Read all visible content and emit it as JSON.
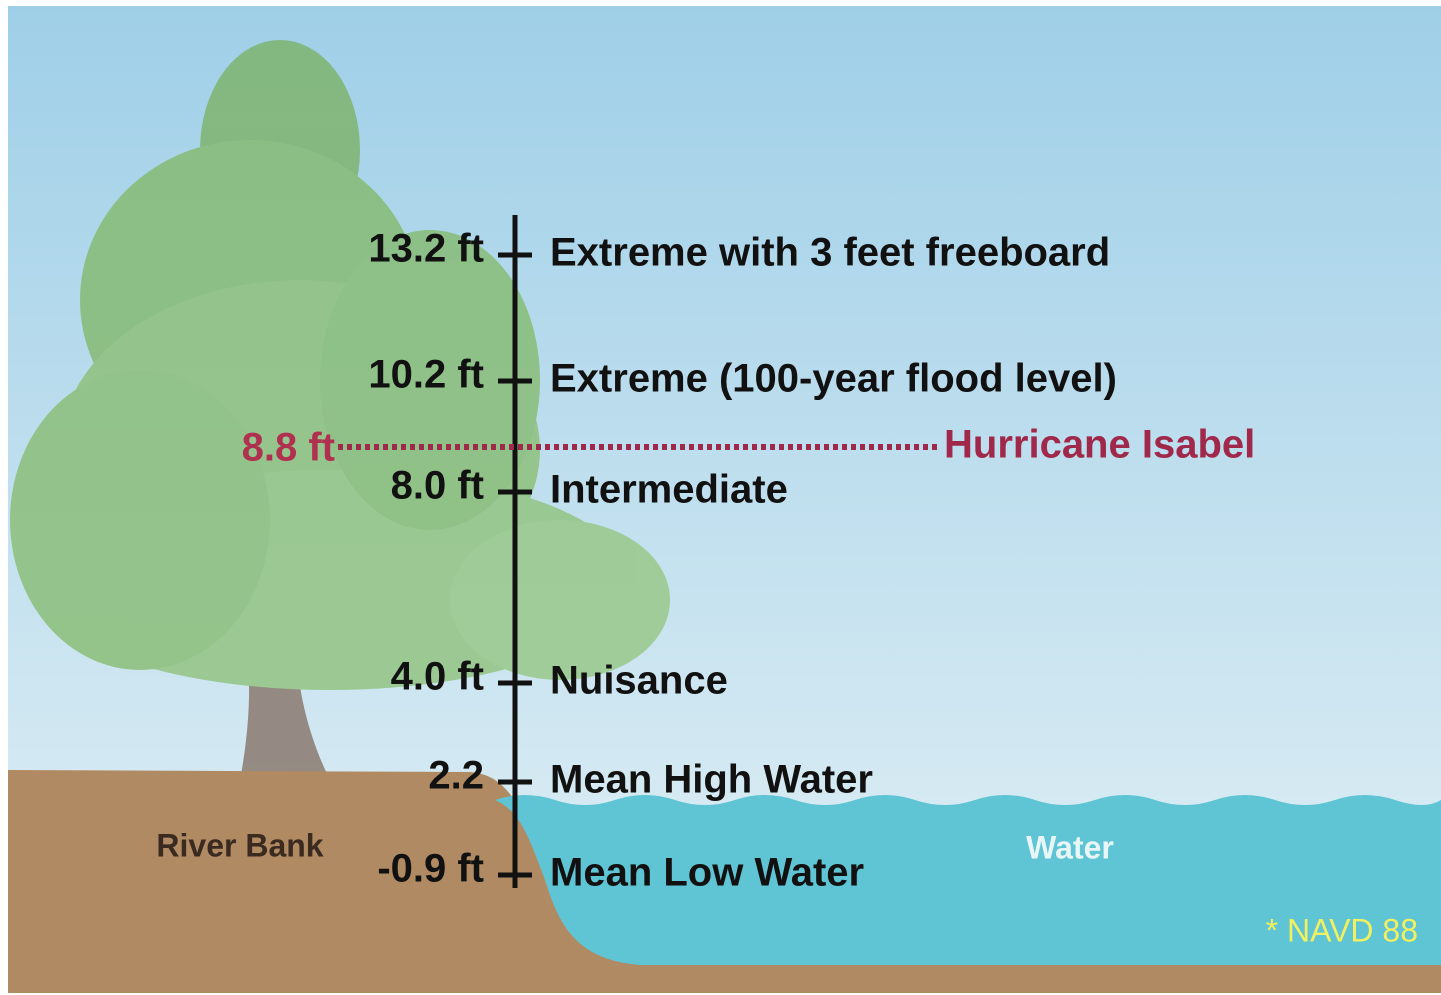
{
  "levels": [
    {
      "label": "13.2 ft",
      "name": "Extreme with 3 feet freeboard"
    },
    {
      "label": "10.2 ft",
      "name": "Extreme (100-year flood level)"
    },
    {
      "label": "8.0 ft",
      "name": "Intermediate"
    },
    {
      "label": "4.0 ft",
      "name": "Nuisance"
    },
    {
      "label": "2.2",
      "name": "Mean High Water"
    },
    {
      "label": "-0.9 ft",
      "name": "Mean Low Water"
    }
  ],
  "hurricane": {
    "label": "8.8 ft",
    "name": "Hurricane Isabel"
  },
  "river_bank": "River Bank",
  "water": "Water",
  "footnote": "* NAVD 88"
}
